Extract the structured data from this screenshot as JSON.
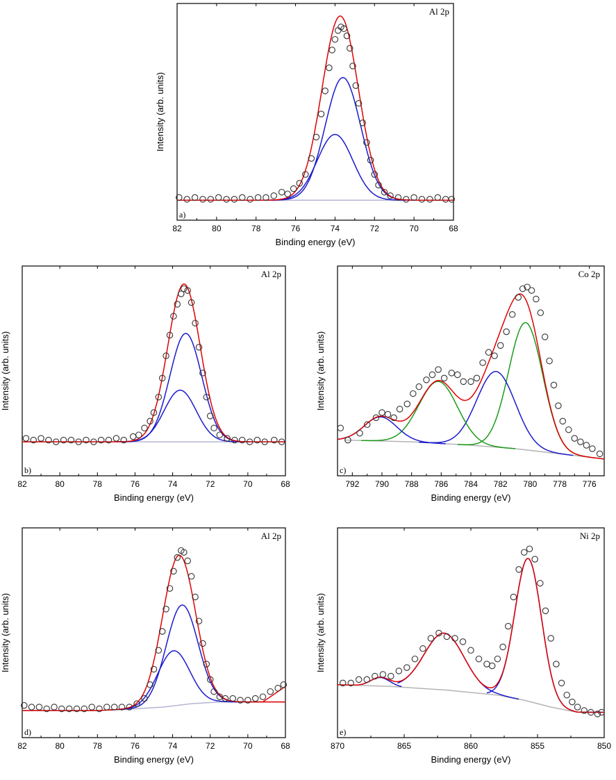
{
  "chart_data": [
    {
      "id": "a",
      "type": "scatter",
      "title": "Al 2p",
      "panel_label": "a)",
      "xlabel": "Binding energy (eV)",
      "ylabel": "Intensity (arb. units)",
      "xlim": [
        82,
        68
      ],
      "ylim": [
        0,
        1.0
      ],
      "x_reversed": true,
      "xticks": [
        82,
        80,
        78,
        76,
        74,
        72,
        70,
        68
      ],
      "colors": {
        "envelope": "#e00000",
        "component": "#1a1acc",
        "background": "#b4b4d2",
        "points": "#333333"
      },
      "background": {
        "x": [
          82,
          68
        ],
        "y": [
          0.015,
          0.015
        ]
      },
      "components": [
        {
          "color": "component",
          "center": 73.6,
          "amp": 0.69,
          "sigma": 0.9
        },
        {
          "color": "component",
          "center": 74.0,
          "amp": 0.37,
          "sigma": 0.9
        }
      ],
      "envelope": {
        "color": "envelope"
      },
      "points": [
        [
          81.9,
          0.03
        ],
        [
          81.5,
          0.02
        ],
        [
          81.1,
          0.03
        ],
        [
          80.7,
          0.02
        ],
        [
          80.3,
          0.02
        ],
        [
          79.9,
          0.03
        ],
        [
          79.5,
          0.02
        ],
        [
          79.1,
          0.02
        ],
        [
          78.7,
          0.03
        ],
        [
          78.3,
          0.02
        ],
        [
          77.9,
          0.03
        ],
        [
          77.5,
          0.03
        ],
        [
          77.1,
          0.04
        ],
        [
          76.7,
          0.06
        ],
        [
          76.4,
          0.05
        ],
        [
          76.1,
          0.08
        ],
        [
          75.8,
          0.11
        ],
        [
          75.5,
          0.16
        ],
        [
          75.2,
          0.25
        ],
        [
          74.95,
          0.37
        ],
        [
          74.7,
          0.5
        ],
        [
          74.5,
          0.63
        ],
        [
          74.3,
          0.76
        ],
        [
          74.15,
          0.86
        ],
        [
          74.0,
          0.92
        ],
        [
          73.85,
          0.97
        ],
        [
          73.7,
          0.99
        ],
        [
          73.55,
          0.98
        ],
        [
          73.4,
          0.94
        ],
        [
          73.25,
          0.87
        ],
        [
          73.1,
          0.77
        ],
        [
          72.95,
          0.66
        ],
        [
          72.8,
          0.56
        ],
        [
          72.6,
          0.45
        ],
        [
          72.4,
          0.34
        ],
        [
          72.2,
          0.24
        ],
        [
          72.0,
          0.16
        ],
        [
          71.8,
          0.1
        ],
        [
          71.5,
          0.06
        ],
        [
          71.2,
          0.04
        ],
        [
          70.8,
          0.03
        ],
        [
          70.4,
          0.02
        ],
        [
          70.0,
          0.03
        ],
        [
          69.6,
          0.02
        ],
        [
          69.2,
          0.02
        ],
        [
          68.8,
          0.03
        ],
        [
          68.4,
          0.02
        ],
        [
          68.1,
          0.02
        ]
      ]
    },
    {
      "id": "b",
      "type": "scatter",
      "title": "Al 2p",
      "panel_label": "b)",
      "xlabel": "Binding energy (eV)",
      "ylabel": "Intensity (arb. units)",
      "xlim": [
        82,
        68
      ],
      "ylim": [
        0,
        1.0
      ],
      "x_reversed": true,
      "xticks": [
        82,
        80,
        78,
        76,
        74,
        72,
        70,
        68
      ],
      "colors": {
        "envelope": "#e00000",
        "component": "#1a1acc",
        "background": "#b4b4d2",
        "points": "#333333"
      },
      "background": {
        "x": [
          82,
          68
        ],
        "y": [
          0.1,
          0.1
        ]
      },
      "components": [
        {
          "color": "component",
          "center": 73.3,
          "amp": 0.63,
          "sigma": 0.85
        },
        {
          "color": "component",
          "center": 73.6,
          "amp": 0.3,
          "sigma": 0.85
        }
      ],
      "envelope": {
        "color": "envelope"
      },
      "points": [
        [
          81.8,
          0.12
        ],
        [
          81.4,
          0.11
        ],
        [
          81.0,
          0.12
        ],
        [
          80.6,
          0.11
        ],
        [
          80.2,
          0.1
        ],
        [
          79.8,
          0.11
        ],
        [
          79.4,
          0.11
        ],
        [
          79.0,
          0.1
        ],
        [
          78.6,
          0.11
        ],
        [
          78.2,
          0.1
        ],
        [
          77.8,
          0.11
        ],
        [
          77.4,
          0.11
        ],
        [
          77.0,
          0.12
        ],
        [
          76.6,
          0.11
        ],
        [
          76.1,
          0.13
        ],
        [
          75.8,
          0.14
        ],
        [
          75.5,
          0.18
        ],
        [
          75.2,
          0.22
        ],
        [
          75.0,
          0.27
        ],
        [
          74.75,
          0.36
        ],
        [
          74.55,
          0.47
        ],
        [
          74.35,
          0.6
        ],
        [
          74.15,
          0.72
        ],
        [
          73.95,
          0.83
        ],
        [
          73.75,
          0.9
        ],
        [
          73.55,
          0.96
        ],
        [
          73.4,
          0.99
        ],
        [
          73.2,
          0.98
        ],
        [
          73.0,
          0.91
        ],
        [
          72.8,
          0.79
        ],
        [
          72.6,
          0.65
        ],
        [
          72.4,
          0.5
        ],
        [
          72.2,
          0.36
        ],
        [
          72.0,
          0.25
        ],
        [
          71.8,
          0.18
        ],
        [
          71.5,
          0.14
        ],
        [
          71.1,
          0.12
        ],
        [
          70.7,
          0.11
        ],
        [
          70.3,
          0.11
        ],
        [
          69.9,
          0.1
        ],
        [
          69.5,
          0.11
        ],
        [
          69.1,
          0.1
        ],
        [
          68.6,
          0.11
        ],
        [
          68.2,
          0.1
        ]
      ]
    },
    {
      "id": "c",
      "type": "scatter",
      "title": "Co 2p",
      "panel_label": "c)",
      "xlabel": "Binding energy (eV)",
      "ylabel": "Intensity (arb. units)",
      "xlim": [
        793,
        775
      ],
      "ylim": [
        0,
        1.0
      ],
      "x_reversed": true,
      "xticks": [
        792,
        790,
        788,
        786,
        784,
        782,
        780,
        778,
        776
      ],
      "colors": {
        "envelope": "#e00000",
        "blue": "#1a1acc",
        "green": "#1a9a1a",
        "background": "#b4b4b4",
        "points": "#333333"
      },
      "background": {
        "x": [
          792.5,
          788,
          784,
          781,
          778,
          775
        ],
        "y": [
          0.11,
          0.1,
          0.08,
          0.06,
          0.03,
          0.0
        ]
      },
      "components": [
        {
          "color": "green",
          "center": 780.3,
          "amp": 0.74,
          "sigma": 1.15
        },
        {
          "color": "blue",
          "center": 782.3,
          "amp": 0.44,
          "sigma": 1.3
        },
        {
          "color": "green",
          "center": 786.2,
          "amp": 0.36,
          "sigma": 1.3
        },
        {
          "color": "blue",
          "center": 790.1,
          "amp": 0.14,
          "sigma": 1.1
        }
      ],
      "envelope": {
        "color": "envelope"
      },
      "points": [
        [
          792.8,
          0.18
        ],
        [
          792.3,
          0.11
        ],
        [
          791.5,
          0.15
        ],
        [
          791.0,
          0.2
        ],
        [
          790.4,
          0.24
        ],
        [
          790.0,
          0.27
        ],
        [
          789.6,
          0.26
        ],
        [
          789.2,
          0.24
        ],
        [
          788.8,
          0.29
        ],
        [
          788.3,
          0.32
        ],
        [
          787.9,
          0.38
        ],
        [
          787.5,
          0.42
        ],
        [
          787.0,
          0.46
        ],
        [
          786.6,
          0.49
        ],
        [
          786.2,
          0.52
        ],
        [
          785.8,
          0.47
        ],
        [
          785.3,
          0.5
        ],
        [
          784.9,
          0.49
        ],
        [
          784.5,
          0.45
        ],
        [
          784.0,
          0.45
        ],
        [
          783.6,
          0.47
        ],
        [
          783.2,
          0.56
        ],
        [
          782.8,
          0.62
        ],
        [
          782.4,
          0.6
        ],
        [
          782.0,
          0.66
        ],
        [
          781.6,
          0.74
        ],
        [
          781.2,
          0.84
        ],
        [
          780.8,
          0.94
        ],
        [
          780.5,
          0.99
        ],
        [
          780.2,
          1.0
        ],
        [
          779.9,
          0.98
        ],
        [
          779.6,
          0.93
        ],
        [
          779.3,
          0.85
        ],
        [
          779.0,
          0.71
        ],
        [
          778.7,
          0.57
        ],
        [
          778.4,
          0.43
        ],
        [
          778.1,
          0.31
        ],
        [
          777.8,
          0.22
        ],
        [
          777.4,
          0.17
        ],
        [
          777.0,
          0.12
        ],
        [
          776.6,
          0.1
        ],
        [
          776.2,
          0.08
        ],
        [
          775.8,
          0.06
        ],
        [
          775.3,
          0.03
        ]
      ]
    },
    {
      "id": "d",
      "type": "scatter",
      "title": "Al 2p",
      "panel_label": "d)",
      "xlabel": "Binding energy (eV)",
      "ylabel": "Intensity (arb. units)",
      "xlim": [
        82,
        68
      ],
      "ylim": [
        0,
        1.0
      ],
      "x_reversed": true,
      "xticks": [
        82,
        80,
        78,
        76,
        74,
        72,
        70,
        68
      ],
      "colors": {
        "envelope": "#e00000",
        "component": "#1a1acc",
        "background": "#b4b4d2",
        "points": "#333333"
      },
      "background": {
        "x": [
          82,
          78,
          76,
          74.5,
          73,
          71.5,
          70,
          69.2,
          69.2,
          68
        ],
        "y": [
          0.06,
          0.06,
          0.07,
          0.08,
          0.1,
          0.11,
          0.11,
          0.11,
          0.11,
          0.11
        ]
      },
      "components": [
        {
          "color": "component",
          "center": 73.5,
          "amp": 0.58,
          "sigma": 0.85
        },
        {
          "color": "component",
          "center": 73.95,
          "amp": 0.32,
          "sigma": 0.85
        }
      ],
      "envelope": {
        "color": "envelope",
        "extra_tail": {
          "x": [
            70,
            69.2,
            68
          ],
          "y": [
            0.11,
            0.11,
            0.2
          ]
        }
      },
      "points": [
        [
          81.9,
          0.09
        ],
        [
          81.5,
          0.08
        ],
        [
          81.1,
          0.08
        ],
        [
          80.7,
          0.07
        ],
        [
          80.3,
          0.08
        ],
        [
          79.9,
          0.07
        ],
        [
          79.5,
          0.07
        ],
        [
          79.1,
          0.07
        ],
        [
          78.7,
          0.07
        ],
        [
          78.3,
          0.08
        ],
        [
          77.9,
          0.07
        ],
        [
          77.5,
          0.08
        ],
        [
          77.1,
          0.08
        ],
        [
          76.7,
          0.08
        ],
        [
          76.3,
          0.08
        ],
        [
          75.9,
          0.1
        ],
        [
          75.5,
          0.13
        ],
        [
          75.2,
          0.21
        ],
        [
          75.0,
          0.3
        ],
        [
          74.75,
          0.41
        ],
        [
          74.55,
          0.52
        ],
        [
          74.35,
          0.65
        ],
        [
          74.15,
          0.77
        ],
        [
          73.95,
          0.87
        ],
        [
          73.75,
          0.95
        ],
        [
          73.55,
          0.99
        ],
        [
          73.4,
          0.98
        ],
        [
          73.2,
          0.93
        ],
        [
          73.0,
          0.84
        ],
        [
          72.8,
          0.72
        ],
        [
          72.6,
          0.58
        ],
        [
          72.4,
          0.45
        ],
        [
          72.2,
          0.33
        ],
        [
          72.0,
          0.24
        ],
        [
          71.8,
          0.17
        ],
        [
          71.5,
          0.14
        ],
        [
          71.2,
          0.13
        ],
        [
          70.8,
          0.13
        ],
        [
          70.4,
          0.12
        ],
        [
          70.0,
          0.12
        ],
        [
          69.6,
          0.13
        ],
        [
          69.2,
          0.14
        ],
        [
          68.8,
          0.17
        ],
        [
          68.4,
          0.19
        ],
        [
          68.1,
          0.21
        ]
      ]
    },
    {
      "id": "e",
      "type": "scatter",
      "title": "Ni 2p",
      "panel_label": "e)",
      "xlabel": "Binding energy (eV)",
      "ylabel": "Intensity (arb. units)",
      "xlim": [
        870,
        850
      ],
      "ylim": [
        0,
        1.0
      ],
      "x_reversed": true,
      "xticks": [
        870,
        865,
        860,
        855,
        850
      ],
      "colors": {
        "envelope": "#e00000",
        "component": "#1a1acc",
        "background": "#b4b4b4",
        "points": "#333333"
      },
      "background": {
        "x": [
          870,
          866,
          862,
          858,
          856,
          854,
          852,
          850
        ],
        "y": [
          0.21,
          0.2,
          0.18,
          0.15,
          0.12,
          0.08,
          0.05,
          0.05
        ]
      },
      "components": [
        {
          "color": "component",
          "center": 855.7,
          "amp": 0.83,
          "sigma": 1.0,
          "range": [
            858.8,
            850
          ]
        },
        {
          "color": "component",
          "center": 862.0,
          "amp": 0.33,
          "sigma": 1.5,
          "range": [
            865.5,
            856.4
          ]
        },
        {
          "color": "component",
          "center": 866.8,
          "amp": 0.05,
          "sigma": 0.7,
          "range": [
            868.2,
            865.2
          ]
        }
      ],
      "envelope": {
        "color": "envelope"
      },
      "points": [
        [
          869.6,
          0.22
        ],
        [
          869.0,
          0.22
        ],
        [
          868.4,
          0.24
        ],
        [
          867.8,
          0.24
        ],
        [
          867.2,
          0.26
        ],
        [
          866.6,
          0.27
        ],
        [
          866.0,
          0.26
        ],
        [
          865.4,
          0.29
        ],
        [
          864.8,
          0.31
        ],
        [
          864.2,
          0.36
        ],
        [
          863.6,
          0.42
        ],
        [
          863.0,
          0.48
        ],
        [
          862.4,
          0.51
        ],
        [
          861.8,
          0.49
        ],
        [
          861.2,
          0.48
        ],
        [
          860.6,
          0.46
        ],
        [
          860.0,
          0.41
        ],
        [
          859.4,
          0.36
        ],
        [
          858.8,
          0.33
        ],
        [
          858.4,
          0.32
        ],
        [
          858.0,
          0.36
        ],
        [
          857.6,
          0.43
        ],
        [
          857.2,
          0.55
        ],
        [
          856.8,
          0.72
        ],
        [
          856.4,
          0.88
        ],
        [
          856.0,
          0.98
        ],
        [
          855.6,
          1.0
        ],
        [
          855.2,
          0.94
        ],
        [
          854.8,
          0.8
        ],
        [
          854.4,
          0.64
        ],
        [
          854.0,
          0.48
        ],
        [
          853.6,
          0.33
        ],
        [
          853.2,
          0.22
        ],
        [
          852.8,
          0.15
        ],
        [
          852.4,
          0.11
        ],
        [
          852.0,
          0.08
        ],
        [
          851.5,
          0.06
        ],
        [
          851.0,
          0.05
        ],
        [
          850.5,
          0.04
        ],
        [
          850.2,
          0.05
        ]
      ]
    }
  ]
}
